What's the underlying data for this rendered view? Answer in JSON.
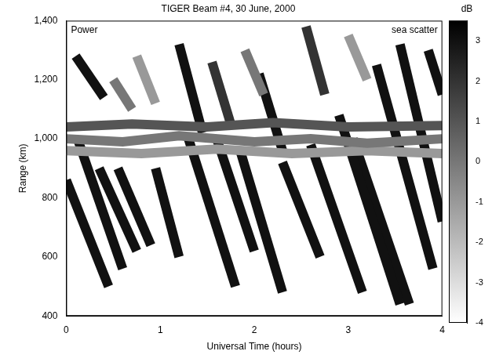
{
  "chart_data": {
    "type": "heatmap",
    "title": "TIGER Beam #4, 30 June, 2000",
    "x_label": "Universal Time (hours)",
    "y_label": "Range (km)",
    "xlim": [
      0,
      4
    ],
    "xticks": [
      0,
      1,
      2,
      3,
      4
    ],
    "ylim": [
      400,
      1400
    ],
    "yticks": [
      400,
      600,
      800,
      1000,
      1200,
      1400
    ],
    "grid": false,
    "annotations": [
      "Power",
      "sea scatter"
    ],
    "echoes": [
      {
        "time": [
          0,
          0.6,
          1.2,
          2.0,
          2.6,
          3.2,
          4.0
        ],
        "range": [
          1000,
          990,
          1010,
          990,
          1000,
          985,
          1000
        ],
        "power": 0
      },
      {
        "time": [
          0,
          0.8,
          1.6,
          2.4,
          3.2,
          4.0
        ],
        "range": [
          960,
          950,
          965,
          950,
          960,
          950
        ],
        "power": -1
      },
      {
        "time": [
          0,
          0.7,
          1.5,
          2.2,
          3.0,
          4.0
        ],
        "range": [
          1040,
          1050,
          1040,
          1055,
          1040,
          1045
        ],
        "power": 1
      },
      {
        "time": [
          0.5,
          0.7
        ],
        "range": [
          1200,
          1100
        ],
        "power": 0
      },
      {
        "time": [
          0.75,
          0.95
        ],
        "range": [
          1280,
          1120
        ],
        "power": -1
      },
      {
        "time": [
          1.9,
          2.1
        ],
        "range": [
          1300,
          1150
        ],
        "power": 0
      },
      {
        "time": [
          3.0,
          3.2
        ],
        "range": [
          1350,
          1200
        ],
        "power": -1
      },
      {
        "time": [
          0.0,
          0.45
        ],
        "range": [
          860,
          500
        ],
        "power": 3
      },
      {
        "time": [
          0.12,
          0.6
        ],
        "range": [
          1000,
          560
        ],
        "power": 3
      },
      {
        "time": [
          0.35,
          0.75
        ],
        "range": [
          900,
          620
        ],
        "power": 3
      },
      {
        "time": [
          0.55,
          0.9
        ],
        "range": [
          900,
          640
        ],
        "power": 3
      },
      {
        "time": [
          0.1,
          0.4
        ],
        "range": [
          1280,
          1140
        ],
        "power": 3
      },
      {
        "time": [
          0.95,
          1.2
        ],
        "range": [
          900,
          600
        ],
        "power": 3
      },
      {
        "time": [
          1.2,
          1.45
        ],
        "range": [
          1320,
          1020
        ],
        "power": 3
      },
      {
        "time": [
          1.3,
          1.8
        ],
        "range": [
          1000,
          500
        ],
        "power": 3
      },
      {
        "time": [
          1.55,
          1.75
        ],
        "range": [
          1260,
          1050
        ],
        "power": 2
      },
      {
        "time": [
          1.6,
          2.0
        ],
        "range": [
          1000,
          620
        ],
        "power": 3
      },
      {
        "time": [
          1.85,
          2.3
        ],
        "range": [
          960,
          480
        ],
        "power": 3
      },
      {
        "time": [
          2.05,
          2.3
        ],
        "range": [
          1220,
          960
        ],
        "power": 3
      },
      {
        "time": [
          2.3,
          2.7
        ],
        "range": [
          920,
          600
        ],
        "power": 3
      },
      {
        "time": [
          2.55,
          2.75
        ],
        "range": [
          1380,
          1150
        ],
        "power": 2
      },
      {
        "time": [
          2.6,
          3.15
        ],
        "range": [
          980,
          480
        ],
        "power": 3
      },
      {
        "time": [
          2.9,
          3.55
        ],
        "range": [
          1080,
          440
        ],
        "power": 3
      },
      {
        "time": [
          3.05,
          3.65
        ],
        "range": [
          1000,
          440
        ],
        "power": 3
      },
      {
        "time": [
          3.3,
          3.9
        ],
        "range": [
          1250,
          560
        ],
        "power": 3
      },
      {
        "time": [
          3.55,
          4.0
        ],
        "range": [
          1320,
          720
        ],
        "power": 3
      },
      {
        "time": [
          3.85,
          4.0
        ],
        "range": [
          1300,
          1150
        ],
        "power": 3
      }
    ],
    "colorbar": {
      "title": "dB",
      "lim": [
        -4,
        3.5
      ],
      "ticks": [
        3,
        2,
        1,
        0,
        -1,
        -2,
        -3,
        -4
      ]
    }
  }
}
